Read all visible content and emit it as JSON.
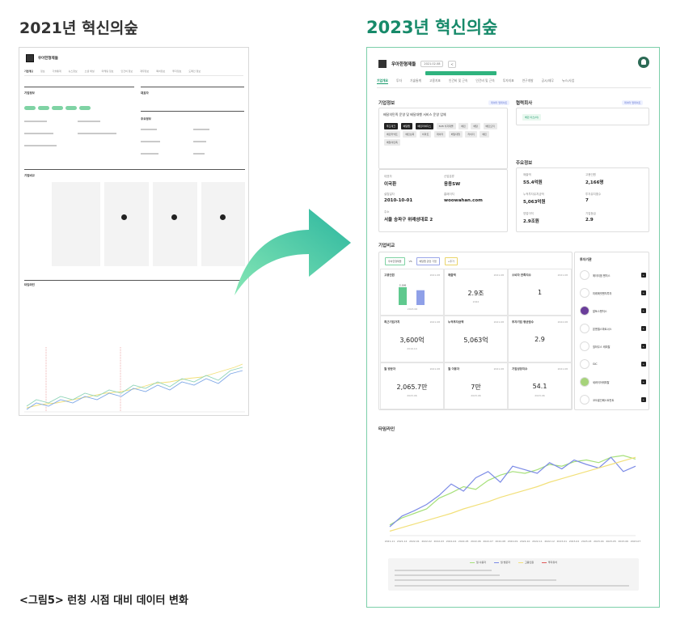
{
  "headings": {
    "before": "2021년 혁신의숲",
    "after": "2023년 혁신의숲"
  },
  "caption": "<그림5> 런칭 시점 대비 데이터 변화",
  "colors": {
    "accent_green": "#178a6a",
    "arrow_start": "#7fe3b4",
    "arrow_end": "#2fb8a0"
  },
  "old_page": {
    "company": "우아한형제들",
    "tabs": [
      "기업개요",
      "정보",
      "기술통계",
      "뉴스정보",
      "소셜 채널",
      "마케팅 정보",
      "인건비 정보",
      "재무정보",
      "특허정보",
      "투자정보",
      "도메인 정보"
    ],
    "sections": {
      "company_info": "기업정보",
      "related": "대표자",
      "main_info": "주요정보",
      "compare": "기업비교",
      "timeline": "타임라인"
    }
  },
  "new_page": {
    "company": "우아한형제들",
    "date_chip": "2021.02.08",
    "tabs": [
      "기업개요",
      "투자",
      "기술통계",
      "고용지표",
      "인건비 및 근속",
      "인건비 및 근속",
      "투자지표",
      "연구개발",
      "공시/재무",
      "뉴스/사업"
    ],
    "company_info": {
      "title": "기업정보",
      "badge": "데이터 업데이트",
      "tagline": "배달의민족 운영 및 배달대행 서비스 운영 업체",
      "chips": [
        "푸드테크",
        "배달앱",
        "배민라이더스",
        "B2B 식자재몰",
        "배민",
        "배달",
        "배민오더",
        "배민커넥트",
        "배민상회",
        "비마트",
        "데이터",
        "배달대행",
        "라이더",
        "배민",
        "배달의민족"
      ],
      "ceo_label": "대표자",
      "ceo": "이국환",
      "industry_label": "산업분류",
      "industry": "응용SW",
      "founded_label": "설립일자",
      "founded": "2010-10-01",
      "homepage_label": "홈페이지",
      "homepage": "woowahan.com",
      "address_label": "주소",
      "address": "서울 송파구 위례성대로 2"
    },
    "partners": {
      "title": "협력회사",
      "badge": "데이터 업데이트",
      "item": "배민 이츠(아)"
    },
    "key_info": {
      "title": "주요정보",
      "items": [
        {
          "label": "매출액",
          "value": "55.4억원"
        },
        {
          "label": "고용인원",
          "value": "2,166명"
        },
        {
          "label": "누적투자유치금액",
          "value": "5,063억원"
        },
        {
          "label": "투자유치횟수",
          "value": "7"
        },
        {
          "label": "영업이익",
          "value": "2.9조원"
        },
        {
          "label": "기업등급",
          "value": "2.9"
        }
      ]
    },
    "compare": {
      "title": "기업비교",
      "filters": [
        "우아한형제들",
        "VS",
        "배달앱 관련 기업",
        "+추가"
      ],
      "cells": [
        {
          "label": "고용인원",
          "unit": "2021.08",
          "value": "",
          "date": ""
        },
        {
          "label": "매출액",
          "unit": "2021.08",
          "value": "2.9조",
          "date": "2022"
        },
        {
          "label": "소비자 만족지수",
          "unit": "2021.08",
          "value": "1",
          "date": ""
        },
        {
          "label": "최근기업가치",
          "unit": "2021.08",
          "value": "3,600억",
          "date": "2019.10"
        },
        {
          "label": "누적투자금액",
          "unit": "2021.08",
          "value": "5,063억",
          "date": ""
        },
        {
          "label": "투자기업 평균점수",
          "unit": "2022.08",
          "value": "2.9",
          "date": ""
        },
        {
          "label": "월 방문자",
          "unit": "2021.08",
          "value": "2,065.7만",
          "date": "2023.06"
        },
        {
          "label": "월 이용자",
          "unit": "2021.08",
          "value": "7만",
          "date": "2023.06"
        },
        {
          "label": "기업성장지수",
          "unit": "2021.08",
          "value": "54.1",
          "date": "2023.06"
        }
      ],
      "bar_chart": {
        "values": [
          2166,
          1800
        ],
        "labels": [
          "2,166",
          ""
        ],
        "period": "2023.06"
      }
    },
    "investors": {
      "title": "투자기관",
      "items": [
        "에이티엠 벤처스",
        "미래에셋벤처투자",
        "알토스벤처스",
        "본엔젤스파트너스",
        "힐하우스 캐피탈",
        "GIC",
        "세콰이어캐피탈",
        "코오롱인베스트먼트"
      ]
    },
    "timeline": {
      "title": "타임라인",
      "legend": [
        "월 사용자",
        "월 방문자",
        "고용인원",
        "투자유치"
      ],
      "x_ticks": [
        "2021-11",
        "2021-12",
        "2022-01",
        "2022-02",
        "2022-03",
        "2022-04",
        "2022-05",
        "2022-06",
        "2022-07",
        "2022-08",
        "2022-09",
        "2022-10",
        "2022-11",
        "2022-12",
        "2023-01",
        "2023-02",
        "2023-03",
        "2023-04",
        "2023-05",
        "2023-06",
        "2023-07"
      ]
    }
  },
  "chart_data": {
    "type": "line",
    "x": [
      "2021-11",
      "2021-12",
      "2022-01",
      "2022-02",
      "2022-03",
      "2022-04",
      "2022-05",
      "2022-06",
      "2022-07",
      "2022-08",
      "2022-09",
      "2022-10",
      "2022-11",
      "2022-12",
      "2023-01",
      "2023-02",
      "2023-03",
      "2023-04",
      "2023-05",
      "2023-06",
      "2023-07"
    ],
    "series": [
      {
        "name": "월 사용자",
        "color": "#a6e07a",
        "values": [
          12,
          20,
          25,
          30,
          42,
          48,
          55,
          52,
          62,
          68,
          72,
          70,
          74,
          80,
          78,
          83,
          85,
          82,
          88,
          90,
          86
        ]
      },
      {
        "name": "월 방문자",
        "color": "#7c8be6",
        "values": [
          10,
          22,
          28,
          35,
          45,
          58,
          50,
          65,
          72,
          60,
          78,
          74,
          70,
          82,
          75,
          85,
          80,
          76,
          88,
          72,
          78
        ]
      },
      {
        "name": "고용인원",
        "color": "#f2e07a",
        "values": [
          5,
          9,
          13,
          17,
          21,
          25,
          30,
          34,
          38,
          43,
          47,
          51,
          55,
          60,
          64,
          68,
          72,
          76,
          80,
          84,
          88
        ]
      }
    ],
    "ylim": [
      0,
      100
    ]
  }
}
